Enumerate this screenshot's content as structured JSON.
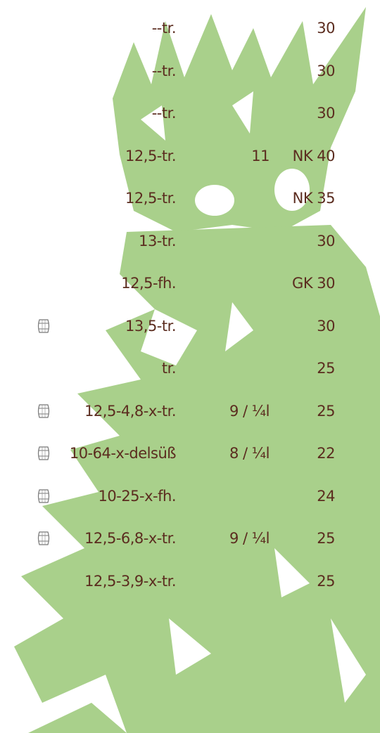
{
  "rows": [
    {
      "name": "--tr.",
      "price": "30"
    },
    {
      "name": "--tr.",
      "price": "30"
    },
    {
      "name": "--tr.",
      "price": "30"
    },
    {
      "name": "12,5-tr.",
      "glass": "11",
      "price": "NK 40"
    },
    {
      "name": "12,5-tr.",
      "price": "NK 35"
    },
    {
      "name": "13-tr.",
      "price": "30"
    },
    {
      "name": "12,5-fh.",
      "price": "GK 30"
    },
    {
      "barrel": true,
      "name": "13,5-tr.",
      "price": "30"
    },
    {
      "name": "tr.",
      "price": "25"
    },
    {
      "barrel": true,
      "name": "12,5-4,8-x-tr.",
      "glass": "9 / ¼l",
      "price": "25"
    },
    {
      "barrel": true,
      "name": "10-64-x-delsüß",
      "glass": "8 / ¼l",
      "price": "22"
    },
    {
      "barrel": true,
      "name": "10-25-x-fh.",
      "price": "24"
    },
    {
      "barrel": true,
      "name": "12,5-6,8-x-tr.",
      "glass": "9 / ¼l",
      "price": "25"
    },
    {
      "name": "12,5-3,9-x-tr.",
      "price": "25"
    }
  ]
}
